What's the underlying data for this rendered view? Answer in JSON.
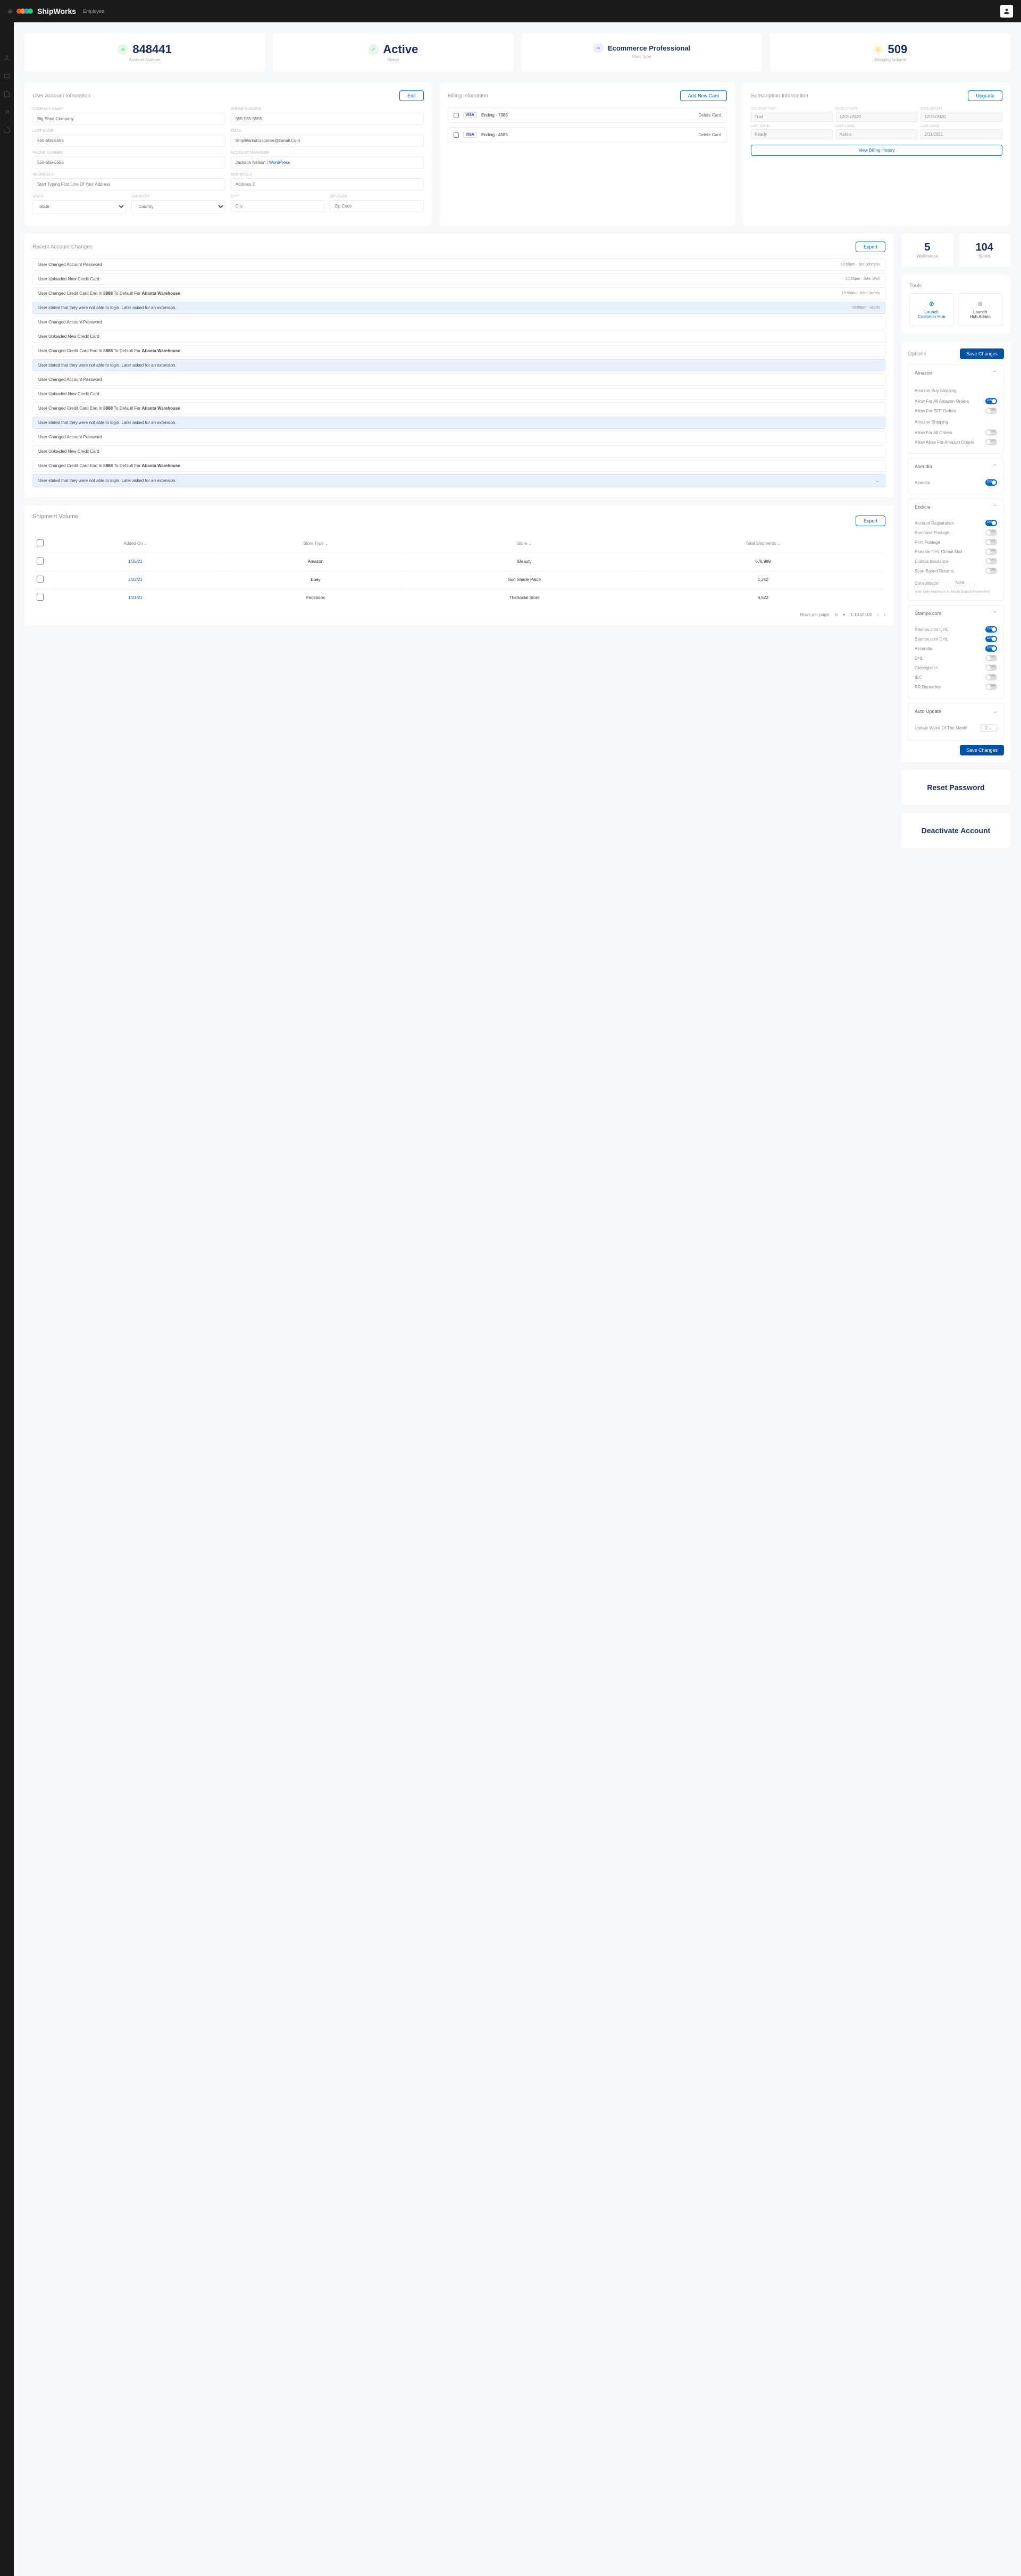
{
  "header": {
    "brand": "ShipWorks",
    "sub": "Employee",
    "logo_colors": [
      "#e74c3c",
      "#f39c12",
      "#3498db",
      "#2ecc71"
    ]
  },
  "stats": [
    {
      "icon_bg": "#e8f5e9",
      "icon_color": "#2ecc71",
      "icon": "≡",
      "value": "848441",
      "label": "Account Number"
    },
    {
      "icon_bg": "#e8f5e9",
      "icon_color": "#2ecc71",
      "icon": "✓",
      "value": "Active",
      "label": "Status"
    },
    {
      "icon_bg": "#eef0f8",
      "icon_color": "#7986cb",
      "icon": "∞",
      "value": "Ecommerce Professional",
      "label": "Plan Type",
      "small": true
    },
    {
      "icon_bg": "#fff8e1",
      "icon_color": "#ffb74d",
      "icon": "◎",
      "value": "509",
      "label": "Shipping Volume"
    }
  ],
  "account": {
    "title": "User Account Infomation",
    "edit": "Edit",
    "fields": {
      "company_label": "COMPANY NAME",
      "company": "Big Shoe Company",
      "phone_label": "PHONE NUMBER",
      "phone": "555-555-5555",
      "last_name_label": "LAST NAME",
      "last_name": "555-555-5555",
      "email_label": "EMAIL",
      "email": "ShipWorksCustomer@Gmail.Com",
      "phone2_label": "PHONE NUMBER",
      "phone2": "555-555-5555",
      "manager_label": "ACCOUNT MANAGER",
      "manager_name": "Jackson Nelson",
      "manager_link": "WordPress",
      "addr1_label": "ADDRESS 1",
      "addr1": "Start Typing First Line Of Your Address",
      "addr2_label": "ADDRESS 2",
      "addr2": "Address 2",
      "state_label": "STATE",
      "state": "State",
      "country_label": "COUNTRY",
      "country": "Country",
      "city_label": "CITY",
      "city": "City",
      "zip_label": "ZIP CODE",
      "zip": "Zip Code"
    }
  },
  "billing": {
    "title": "Billing Infomation",
    "add": "Add New Card",
    "cards": [
      {
        "brand": "VISA",
        "text": "Ending - 7985",
        "action": "Delete Card"
      },
      {
        "brand": "VISA",
        "text": "Ending - 4585",
        "action": "Delete Card"
      }
    ]
  },
  "subscription": {
    "title": "Subscription Information",
    "upgrade": "Upgrade",
    "account_type_label": "ACCOUNT TYPE",
    "account_type": "Trial",
    "date_create_label": "DATE CREATE",
    "date_create": "12/21/2020",
    "date_create2_label": "DATE CREATE",
    "date_create2": "12/21/2020",
    "login1_label": "LAST LOGIN",
    "login1": "Ready",
    "login2_label": "LAST LOGIN",
    "login2": "Kahns",
    "login3_label": "LAST LOGIN",
    "login3": "2/11/2021",
    "history": "View Billing History"
  },
  "mini_stats": [
    {
      "value": "5",
      "label": "Warehouse"
    },
    {
      "value": "104",
      "label": "Stores"
    }
  ],
  "tools": {
    "title": "Tools",
    "buttons": [
      {
        "icon": "⊕",
        "line1": "Launch",
        "line2": "Customer Hub",
        "primary": true
      },
      {
        "icon": "⊕",
        "line1": "Launch",
        "line2": "Hub Admin",
        "primary": false
      }
    ]
  },
  "changes": {
    "title": "Recent Account Changes",
    "export": "Export",
    "items": [
      {
        "text": "User Changed Account Password",
        "time": "10:50pm",
        "user": "Joe Johnson",
        "hl": false
      },
      {
        "text": "User Uploaded New Credit Card",
        "time": "10:55pm",
        "user": "John Well",
        "hl": false
      },
      {
        "text_pre": "User Changed Credit Card End In ",
        "bold1": "8888",
        "text_mid": " To Default For ",
        "bold2": "Atlanta Warehouse",
        "time": "10:55pm",
        "user": "John James",
        "hl": false
      },
      {
        "text": "User stated that they were not able to login. Later asked for an extension.",
        "time": "10:56pm",
        "user": "Jason",
        "hl": true
      },
      {
        "text": "User Changed Account Password",
        "hl": false
      },
      {
        "text": "User Uploaded New Credit Card",
        "hl": false
      },
      {
        "text_pre": "User Changed Credit Card End In ",
        "bold1": "8888",
        "text_mid": " To Default For ",
        "bold2": "Atlanta Warehouse",
        "hl": false
      },
      {
        "text": "User stated that they were not able to login. Later asked for an extension.",
        "hl": true
      },
      {
        "text": "User Changed Account Password",
        "hl": false
      },
      {
        "text": "User Uploaded New Credit Card",
        "hl": false
      },
      {
        "text_pre": "User Changed Credit Card End In ",
        "bold1": "8888",
        "text_mid": " To Default For ",
        "bold2": "Atlanta Warehouse",
        "hl": false
      },
      {
        "text": "User stated that they were not able to login. Later asked for an extension.",
        "hl": true
      },
      {
        "text": "User Changed Account Password",
        "hl": false
      },
      {
        "text": "User Uploaded New Credit Card",
        "hl": false
      },
      {
        "text_pre": "User Changed Credit Card End In ",
        "bold1": "8888",
        "text_mid": " To Default For ",
        "bold2": "Atlanta Warehouse",
        "hl": false
      },
      {
        "text": "User stated that they were not able to login. Later asked for an extension.",
        "hl": true,
        "chevron": true
      }
    ]
  },
  "volume": {
    "title": "Shipment Volume",
    "export": "Export",
    "columns": [
      "Added On",
      "Store Type",
      "Store",
      "Total Shipments"
    ],
    "rows": [
      {
        "date": "1/25/21",
        "type": "Amazon",
        "store": "iBeauty",
        "ship": "678,989"
      },
      {
        "date": "2/22/21",
        "type": "Ebay",
        "store": "Sun Shade Palce",
        "ship": "1,242"
      },
      {
        "date": "1/21/21",
        "type": "Facebook",
        "store": "TheSocial Store",
        "ship": "6,522"
      }
    ],
    "rows_label": "Rows per page:",
    "rows_val": "5",
    "range": "1-10 of 100"
  },
  "options": {
    "title": "Options",
    "save": "Save Changes",
    "sections": [
      {
        "name": "Amazon",
        "groups": [
          {
            "label": "Amazon Buy Shipping",
            "items": [
              {
                "label": "Allow For All Amazon Orders",
                "on": true
              },
              {
                "label": "Allow For SFP Orders",
                "on": false
              }
            ]
          },
          {
            "label": "Amazon Shipping",
            "items": [
              {
                "label": "Allow For All Orders",
                "on": false
              },
              {
                "label": "Allow Allow For Amazon Orders",
                "on": false
              }
            ]
          }
        ]
      },
      {
        "name": "Asendia",
        "groups": [
          {
            "label": null,
            "items": [
              {
                "label": "Asendia",
                "on": true
              }
            ]
          }
        ]
      },
      {
        "name": "Endicia",
        "groups": [
          {
            "label": null,
            "items": [
              {
                "label": "Account Registration",
                "on": true
              },
              {
                "label": "Purchase Postage",
                "on": false
              },
              {
                "label": "Print Postage",
                "on": false
              },
              {
                "label": "Endable DHL Global Mail",
                "on": false
              },
              {
                "label": "Endicia Insurance",
                "on": false
              },
              {
                "label": "Scan-Based Returns",
                "on": false
              }
            ]
          }
        ],
        "consolidator_label": "Consolidator:",
        "consolidator_value": "None",
        "note": "Note: Only Adedma Is As Mostly Endicia Fnemivnfrnc"
      },
      {
        "name": "Stamps.com",
        "groups": [
          {
            "label": null,
            "items": [
              {
                "label": "Stamps.com DHL",
                "on": true
              },
              {
                "label": "Stamps.com DHL",
                "on": true
              },
              {
                "label": "Ascendia",
                "on": true
              },
              {
                "label": "DHL",
                "on": false
              },
              {
                "label": "Globegistics",
                "on": false
              },
              {
                "label": "IBC",
                "on": false
              },
              {
                "label": "RR Donnelley",
                "on": false
              }
            ]
          }
        ]
      },
      {
        "name": "Auto Update",
        "collapsed_sub": true,
        "sub_label": "Update Week Of The Month",
        "sub_value": "2"
      }
    ]
  },
  "actions": {
    "reset": "Reset Password",
    "deactivate": "Deactivate Account"
  }
}
